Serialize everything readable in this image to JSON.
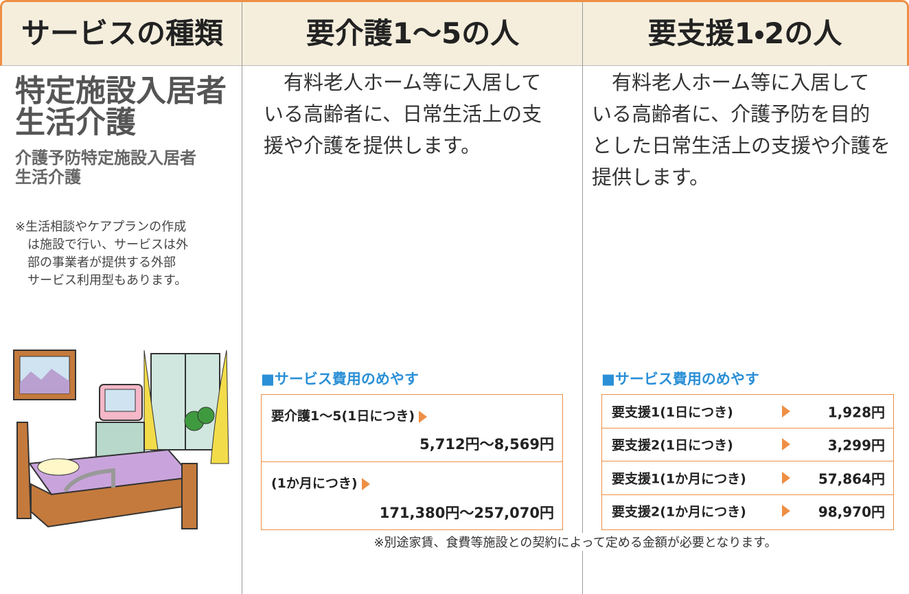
{
  "header": {
    "columns": [
      "サービスの種類",
      "要介護1〜5の人",
      "要支援1・2の人"
    ]
  },
  "service": {
    "title_lines": [
      "特定施設入居者",
      "生活介護"
    ],
    "subtitle_lines": [
      "介護予防特定施設入居者",
      "生活介護"
    ],
    "note_lines": [
      "※生活相談やケアプランの作成",
      "は施設で行い、サービスは外",
      "部の事業者が提供する外部",
      "サービス利用型もあります。"
    ]
  },
  "care": {
    "description_lines": [
      "有料老人ホーム等に入居して",
      "いる高齢者に、日常生活上の支",
      "援や介護を提供します。"
    ],
    "cost_heading": "■サービス費用のめやす",
    "costs": [
      {
        "label": "要介護1〜5(1日につき)",
        "value": "5,712円〜8,569円"
      },
      {
        "label": "(1か月につき)",
        "value": "171,380円〜257,070円"
      }
    ]
  },
  "support": {
    "description_lines": [
      "有料老人ホーム等に入居して",
      "いる高齢者に、介護予防を目的",
      "とした日常生活上の支援や介護を",
      "提供します。"
    ],
    "cost_heading": "■サービス費用のめやす",
    "costs": [
      {
        "label": "要支援1(1日につき)",
        "value": "1,928円"
      },
      {
        "label": "要支援2(1日につき)",
        "value": "3,299円"
      },
      {
        "label": "要支援1(1か月につき)",
        "value": "57,864円"
      },
      {
        "label": "要支援2(1か月につき)",
        "value": "98,970円"
      }
    ]
  },
  "footer_note": "※別途家賃、食費等施設との契約によって定める金額が必要となります。"
}
